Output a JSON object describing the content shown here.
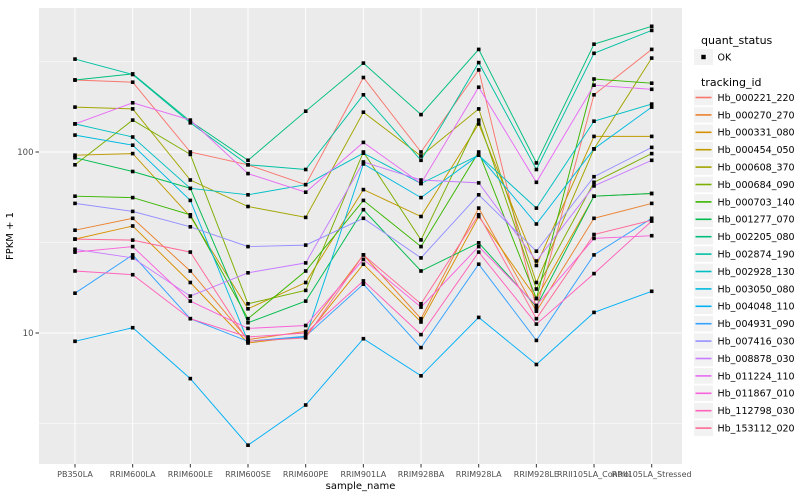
{
  "chart_data": {
    "type": "line",
    "xlabel": "sample_name",
    "ylabel": "FPKM + 1",
    "y_scale": "log10",
    "y_ticks": [
      "100",
      "10"
    ],
    "y_tick_values": [
      100,
      10
    ],
    "y_minor_tick_values": [
      316.2,
      31.62,
      3.162
    ],
    "ylim": [
      2.2,
      560
    ],
    "grid": "on",
    "legend_position": "right",
    "categories": [
      "PB350LA",
      "RRIM600LA",
      "RRIM600LE",
      "RRIM600SE",
      "RRIM600PE",
      "RRIM901LA",
      "RRIM928BA",
      "RRIM928LA",
      "RRIM928LE",
      "RRII105LA_Control",
      "RRII105LA_Stressed"
    ],
    "legend": {
      "quant_status": {
        "title": "quant_status",
        "entries": [
          {
            "label": "OK",
            "symbol": "filled-point",
            "color": "#000000"
          }
        ]
      },
      "tracking_id": {
        "title": "tracking_id"
      }
    },
    "point_symbol": "filled-point",
    "point_color": "#000000",
    "series": [
      {
        "name": "Hb_000221_220",
        "color": "#F8766D",
        "values": [
          250,
          243,
          100,
          85,
          66,
          258,
          100,
          284,
          13.6,
          207,
          369
        ]
      },
      {
        "name": "Hb_000270_270",
        "color": "#EA8331",
        "values": [
          37,
          43,
          22,
          9.2,
          10.2,
          27,
          12,
          49,
          13.2,
          43,
          52
        ]
      },
      {
        "name": "Hb_000331_080",
        "color": "#D89000",
        "values": [
          33,
          39,
          19,
          8.8,
          9.6,
          24,
          11.5,
          44,
          15.5,
          57,
          59
        ]
      },
      {
        "name": "Hb_000454_050",
        "color": "#C09B00",
        "values": [
          96,
          98,
          44,
          13.6,
          19,
          62,
          44,
          143,
          23.6,
          122,
          122
        ]
      },
      {
        "name": "Hb_000608_370",
        "color": "#A3A500",
        "values": [
          177,
          173,
          70,
          50,
          43.5,
          166,
          95,
          173,
          19,
          104,
          330
        ]
      },
      {
        "name": "Hb_000684_090",
        "color": "#7CAE00",
        "values": [
          85,
          150,
          97,
          14.5,
          17.2,
          100,
          32.7,
          150,
          17.5,
          68,
          98
        ]
      },
      {
        "name": "Hb_000703_140",
        "color": "#39B600",
        "values": [
          57,
          56,
          45,
          12,
          22,
          54,
          30,
          100,
          15.5,
          253,
          240
        ]
      },
      {
        "name": "Hb_001277_070",
        "color": "#00BB4E",
        "values": [
          93,
          78,
          63,
          11.4,
          15,
          48,
          22,
          31.5,
          14,
          57,
          59
        ]
      },
      {
        "name": "Hb_002205_080",
        "color": "#00BF7D",
        "values": [
          250,
          270,
          148,
          90,
          168,
          310,
          161,
          369,
          87,
          394,
          495
        ]
      },
      {
        "name": "Hb_002874_190",
        "color": "#00C1A3",
        "values": [
          326,
          268,
          145,
          85,
          80,
          207,
          90,
          312,
          80,
          351,
          470
        ]
      },
      {
        "name": "Hb_002928_130",
        "color": "#00BFC4",
        "values": [
          143,
          121,
          63,
          58,
          66,
          98.5,
          67,
          96,
          49,
          148,
          184
        ]
      },
      {
        "name": "Hb_003050_080",
        "color": "#00BAE0",
        "values": [
          124,
          109,
          54,
          9,
          9.5,
          86,
          56,
          96,
          40,
          104,
          177
        ]
      },
      {
        "name": "Hb_004048_110",
        "color": "#00B0F6",
        "values": [
          9,
          10.7,
          5.6,
          2.4,
          4,
          9.3,
          5.8,
          12.2,
          6.7,
          13,
          17
        ]
      },
      {
        "name": "Hb_004931_090",
        "color": "#35A2FF",
        "values": [
          16.6,
          27,
          12,
          9,
          9.6,
          18.6,
          8.3,
          24,
          9.1,
          27,
          43
        ]
      },
      {
        "name": "Hb_007416_030",
        "color": "#9590FF",
        "values": [
          52,
          47,
          38.6,
          30,
          30.6,
          43,
          26,
          58,
          28.3,
          73,
          106
        ]
      },
      {
        "name": "Hb_008878_030",
        "color": "#C77CFF",
        "values": [
          29,
          26,
          16,
          21.5,
          24.4,
          88,
          70,
          67.5,
          25,
          65,
          90
        ]
      },
      {
        "name": "Hb_011224_110",
        "color": "#E76BF3",
        "values": [
          143,
          187,
          150,
          76,
          60,
          113,
          67,
          228,
          68,
          234,
          222
        ]
      },
      {
        "name": "Hb_011867_010",
        "color": "#FA62DB",
        "values": [
          28,
          30,
          15,
          10.6,
          11,
          25.5,
          13.9,
          30,
          14.2,
          33.3,
          34.5
        ]
      },
      {
        "name": "Hb_112798_030",
        "color": "#FF62BC",
        "values": [
          22,
          21,
          12,
          9.5,
          10,
          19.4,
          9.8,
          28,
          11.2,
          21.3,
          41.5
        ]
      },
      {
        "name": "Hb_153112_020",
        "color": "#FF6A98",
        "values": [
          33,
          32.6,
          28,
          9,
          9.4,
          27,
          14.5,
          45,
          12,
          35,
          42
        ]
      }
    ]
  },
  "style_colors": {
    "panel_bg": "#EBEBEB",
    "grid_major": "#FFFFFF",
    "grid_minor": "#FFFFFF",
    "axis_tick": "#333333",
    "axis_text": "#4D4D4D",
    "title_text": "#000000",
    "legend_key_bg": "#F2F2F2"
  }
}
